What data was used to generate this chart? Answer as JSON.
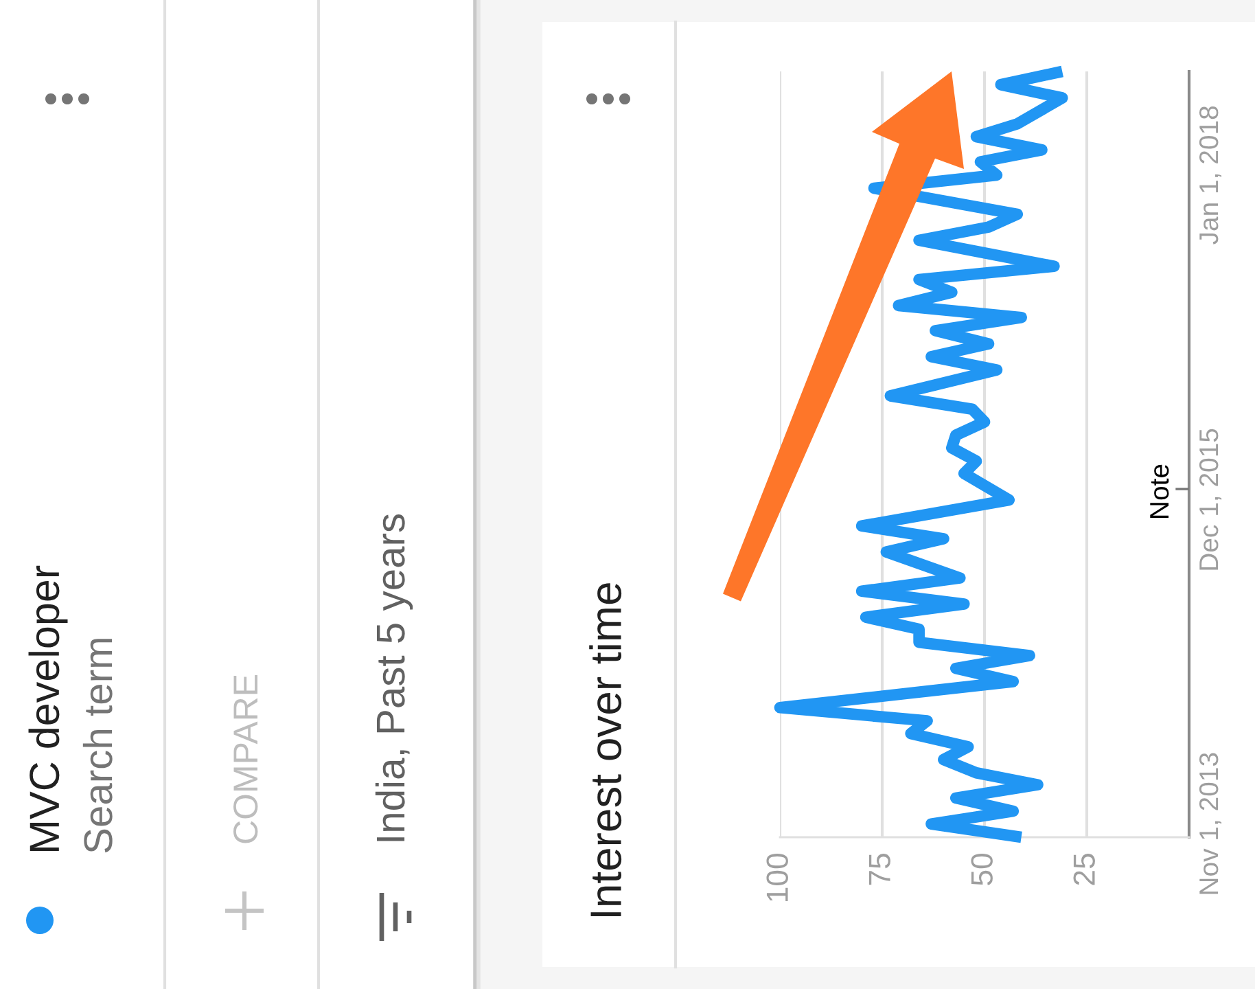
{
  "chart_data": {
    "type": "line",
    "title": "Interest over time",
    "orientation": "horizontal",
    "x": [
      "2013-10",
      "2013-11",
      "2013-12",
      "2014-01",
      "2014-02",
      "2014-03",
      "2014-04",
      "2014-05",
      "2014-06",
      "2014-07",
      "2014-08",
      "2014-10",
      "2014-11",
      "2014-12",
      "2015-01",
      "2015-02",
      "2015-03",
      "2015-04",
      "2015-05",
      "2015-06",
      "2015-08",
      "2015-09",
      "2015-10",
      "2015-12",
      "2016-02",
      "2016-03",
      "2016-04",
      "2016-05",
      "2016-06",
      "2016-07",
      "2016-08",
      "2016-10",
      "2016-11",
      "2016-12",
      "2017-01",
      "2017-02",
      "2017-03",
      "2017-04",
      "2017-05",
      "2017-06",
      "2017-08",
      "2017-09",
      "2017-10",
      "2017-12",
      "2018-01",
      "2018-02",
      "2018-03",
      "2018-04",
      "2018-05",
      "2018-07",
      "2018-08",
      "2018-09"
    ],
    "series": [
      {
        "name": "MVC developer",
        "color": "#2196f3",
        "values": [
          41,
          63,
          43,
          57,
          37,
          52,
          60,
          54,
          68,
          64,
          100,
          43,
          57,
          39,
          66,
          66,
          79,
          55,
          80,
          56,
          74,
          60,
          80,
          44,
          55,
          52,
          58,
          57,
          50,
          53,
          73,
          47,
          63,
          49,
          62,
          41,
          71,
          58,
          66,
          33,
          66,
          49,
          42,
          77,
          47,
          51,
          36,
          52,
          42,
          31,
          46,
          31
        ]
      }
    ],
    "xlim": [
      100,
      0
    ],
    "xticks": [
      25,
      50,
      75,
      100
    ],
    "ylim": [
      "2013-10",
      "2018-09"
    ],
    "yticks": [
      {
        "value": "2013-11-01",
        "label": "Nov 1, 2013"
      },
      {
        "value": "2015-12-01",
        "label": "Dec 1, 2015"
      },
      {
        "value": "2018-01-01",
        "label": "Jan 1, 2018"
      }
    ],
    "grid": "x",
    "legend": "left",
    "annotations": [
      "Search term",
      "COMPARE",
      "India, Past 5 years",
      "Note"
    ]
  }
}
